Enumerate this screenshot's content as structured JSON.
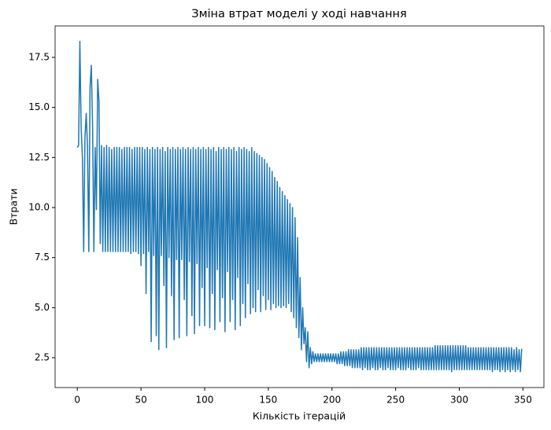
{
  "chart_data": {
    "type": "line",
    "title": "Зміна втрат моделі у ході навчання",
    "xlabel": "Кількість ітерацій",
    "ylabel": "Втрати",
    "color": "#1f77b4",
    "xlim": [
      -17.45,
      366.45
    ],
    "ylim": [
      1.01,
      19.07
    ],
    "xticks": [
      0,
      50,
      100,
      150,
      200,
      250,
      300,
      350
    ],
    "yticks": [
      2.5,
      {
        "value": 5,
        "label": "5.0"
      },
      7.5,
      {
        "value": 10,
        "label": "10.0"
      },
      12.5,
      {
        "value": 15,
        "label": "15.0"
      },
      17.5
    ],
    "x": [
      0,
      1,
      2,
      3,
      4,
      5,
      6,
      7,
      8,
      9,
      10,
      11,
      12,
      13,
      14,
      15,
      16,
      17,
      18,
      19,
      20,
      21,
      22,
      23,
      24,
      25,
      26,
      27,
      28,
      29,
      30,
      31,
      32,
      33,
      34,
      35,
      36,
      37,
      38,
      39,
      40,
      41,
      42,
      43,
      44,
      45,
      46,
      47,
      48,
      49,
      50,
      51,
      52,
      53,
      54,
      55,
      56,
      57,
      58,
      59,
      60,
      61,
      62,
      63,
      64,
      65,
      66,
      67,
      68,
      69,
      70,
      71,
      72,
      73,
      74,
      75,
      76,
      77,
      78,
      79,
      80,
      81,
      82,
      83,
      84,
      85,
      86,
      87,
      88,
      89,
      90,
      91,
      92,
      93,
      94,
      95,
      96,
      97,
      98,
      99,
      100,
      101,
      102,
      103,
      104,
      105,
      106,
      107,
      108,
      109,
      110,
      111,
      112,
      113,
      114,
      115,
      116,
      117,
      118,
      119,
      120,
      121,
      122,
      123,
      124,
      125,
      126,
      127,
      128,
      129,
      130,
      131,
      132,
      133,
      134,
      135,
      136,
      137,
      138,
      139,
      140,
      141,
      142,
      143,
      144,
      145,
      146,
      147,
      148,
      149,
      150,
      151,
      152,
      153,
      154,
      155,
      156,
      157,
      158,
      159,
      160,
      161,
      162,
      163,
      164,
      165,
      166,
      167,
      168,
      169,
      170,
      171,
      172,
      173,
      174,
      175,
      176,
      177,
      178,
      179,
      180,
      181,
      182,
      183,
      184,
      185,
      186,
      187,
      188,
      189,
      190,
      191,
      192,
      193,
      194,
      195,
      196,
      197,
      198,
      199,
      200,
      201,
      202,
      203,
      204,
      205,
      206,
      207,
      208,
      209,
      210,
      211,
      212,
      213,
      214,
      215,
      216,
      217,
      218,
      219,
      220,
      221,
      222,
      223,
      224,
      225,
      226,
      227,
      228,
      229,
      230,
      231,
      232,
      233,
      234,
      235,
      236,
      237,
      238,
      239,
      240,
      241,
      242,
      243,
      244,
      245,
      246,
      247,
      248,
      249,
      250,
      251,
      252,
      253,
      254,
      255,
      256,
      257,
      258,
      259,
      260,
      261,
      262,
      263,
      264,
      265,
      266,
      267,
      268,
      269,
      270,
      271,
      272,
      273,
      274,
      275,
      276,
      277,
      278,
      279,
      280,
      281,
      282,
      283,
      284,
      285,
      286,
      287,
      288,
      289,
      290,
      291,
      292,
      293,
      294,
      295,
      296,
      297,
      298,
      299,
      300,
      301,
      302,
      303,
      304,
      305,
      306,
      307,
      308,
      309,
      310,
      311,
      312,
      313,
      314,
      315,
      316,
      317,
      318,
      319,
      320,
      321,
      322,
      323,
      324,
      325,
      326,
      327,
      328,
      329,
      330,
      331,
      332,
      333,
      334,
      335,
      336,
      337,
      338,
      339,
      340,
      341,
      342,
      343,
      344,
      345,
      346,
      347,
      348,
      349
    ],
    "values": [
      13.0,
      13.1,
      18.3,
      14.0,
      12.5,
      7.8,
      13.5,
      14.7,
      13.0,
      7.8,
      16.0,
      17.1,
      14.0,
      7.8,
      13.0,
      9.9,
      16.4,
      15.3,
      8.2,
      13.1,
      7.8,
      13.0,
      7.8,
      13.1,
      7.8,
      13.0,
      7.8,
      12.9,
      7.8,
      13.0,
      7.8,
      13.0,
      7.8,
      13.0,
      7.8,
      12.9,
      7.8,
      13.0,
      7.8,
      13.0,
      7.8,
      13.0,
      7.7,
      12.9,
      7.8,
      13.0,
      7.8,
      13.0,
      7.7,
      13.0,
      7.1,
      13.0,
      7.7,
      12.9,
      5.7,
      13.0,
      7.8,
      12.9,
      3.3,
      13.0,
      7.6,
      12.9,
      3.6,
      13.0,
      2.9,
      12.9,
      7.6,
      13.0,
      6.1,
      12.8,
      3.0,
      13.0,
      7.5,
      12.9,
      5.6,
      13.0,
      3.4,
      12.9,
      7.4,
      13.0,
      3.5,
      12.9,
      7.4,
      13.0,
      5.4,
      12.9,
      3.6,
      13.0,
      7.3,
      12.9,
      4.6,
      13.0,
      3.7,
      12.9,
      7.2,
      13.0,
      4.1,
      12.9,
      6.0,
      13.0,
      4.1,
      12.9,
      7.0,
      13.0,
      4.0,
      12.9,
      5.7,
      13.0,
      3.9,
      12.8,
      6.9,
      13.0,
      4.3,
      12.9,
      5.5,
      13.0,
      3.8,
      12.9,
      6.8,
      13.0,
      4.3,
      12.9,
      5.4,
      13.0,
      3.9,
      12.8,
      6.5,
      13.0,
      4.1,
      12.9,
      5.2,
      13.0,
      4.5,
      12.9,
      6.2,
      12.8,
      4.7,
      13.0,
      5.0,
      12.8,
      4.8,
      12.7,
      5.9,
      12.6,
      4.8,
      12.5,
      5.6,
      12.4,
      4.9,
      12.2,
      5.4,
      12.0,
      4.9,
      11.8,
      5.2,
      11.5,
      5.0,
      11.3,
      5.1,
      11.0,
      5.0,
      10.8,
      5.1,
      10.6,
      5.0,
      10.4,
      5.2,
      10.2,
      4.8,
      10.0,
      4.5,
      9.5,
      4.0,
      8.5,
      3.5,
      6.5,
      2.9,
      5.0,
      3.2,
      4.0,
      2.3,
      3.8,
      2.0,
      3.0,
      2.2,
      2.8,
      2.3,
      2.7,
      2.3,
      2.7,
      2.3,
      2.7,
      2.3,
      2.7,
      2.3,
      2.7,
      2.3,
      2.7,
      2.3,
      2.7,
      2.3,
      2.7,
      2.3,
      2.7,
      2.2,
      2.7,
      2.2,
      2.8,
      2.2,
      2.8,
      2.1,
      2.8,
      2.1,
      2.9,
      2.1,
      2.9,
      2.0,
      2.9,
      2.0,
      2.9,
      2.0,
      2.9,
      2.0,
      3.0,
      1.9,
      3.0,
      2.0,
      3.0,
      1.9,
      3.0,
      1.9,
      3.0,
      2.0,
      3.0,
      1.9,
      3.0,
      1.9,
      3.0,
      2.0,
      3.0,
      1.9,
      3.0,
      1.9,
      3.0,
      2.0,
      3.0,
      1.9,
      3.0,
      1.9,
      3.0,
      1.9,
      3.0,
      2.0,
      3.0,
      1.9,
      3.0,
      1.9,
      3.0,
      1.9,
      3.0,
      2.0,
      3.0,
      1.9,
      3.0,
      1.9,
      3.0,
      1.9,
      3.0,
      2.0,
      3.0,
      1.9,
      3.0,
      1.9,
      3.0,
      1.9,
      3.0,
      1.9,
      3.0,
      1.9,
      3.0,
      1.9,
      3.1,
      1.9,
      3.1,
      1.9,
      3.1,
      1.9,
      3.1,
      1.9,
      3.1,
      1.9,
      3.1,
      1.9,
      3.1,
      1.8,
      3.1,
      1.9,
      3.1,
      1.9,
      3.1,
      1.9,
      3.1,
      1.9,
      3.1,
      1.9,
      3.1,
      1.9,
      3.0,
      1.9,
      3.0,
      1.9,
      3.0,
      1.9,
      3.0,
      1.9,
      3.0,
      1.9,
      3.0,
      1.9,
      3.0,
      1.9,
      3.0,
      1.9,
      3.0,
      1.9,
      3.0,
      1.8,
      3.0,
      1.9,
      3.0,
      1.9,
      3.0,
      1.8,
      3.0,
      1.9,
      3.0,
      1.8,
      3.0,
      1.9,
      3.0,
      1.8,
      3.0,
      1.9,
      2.9,
      1.8,
      3.0,
      1.9,
      2.9,
      1.8,
      2.95
    ]
  }
}
